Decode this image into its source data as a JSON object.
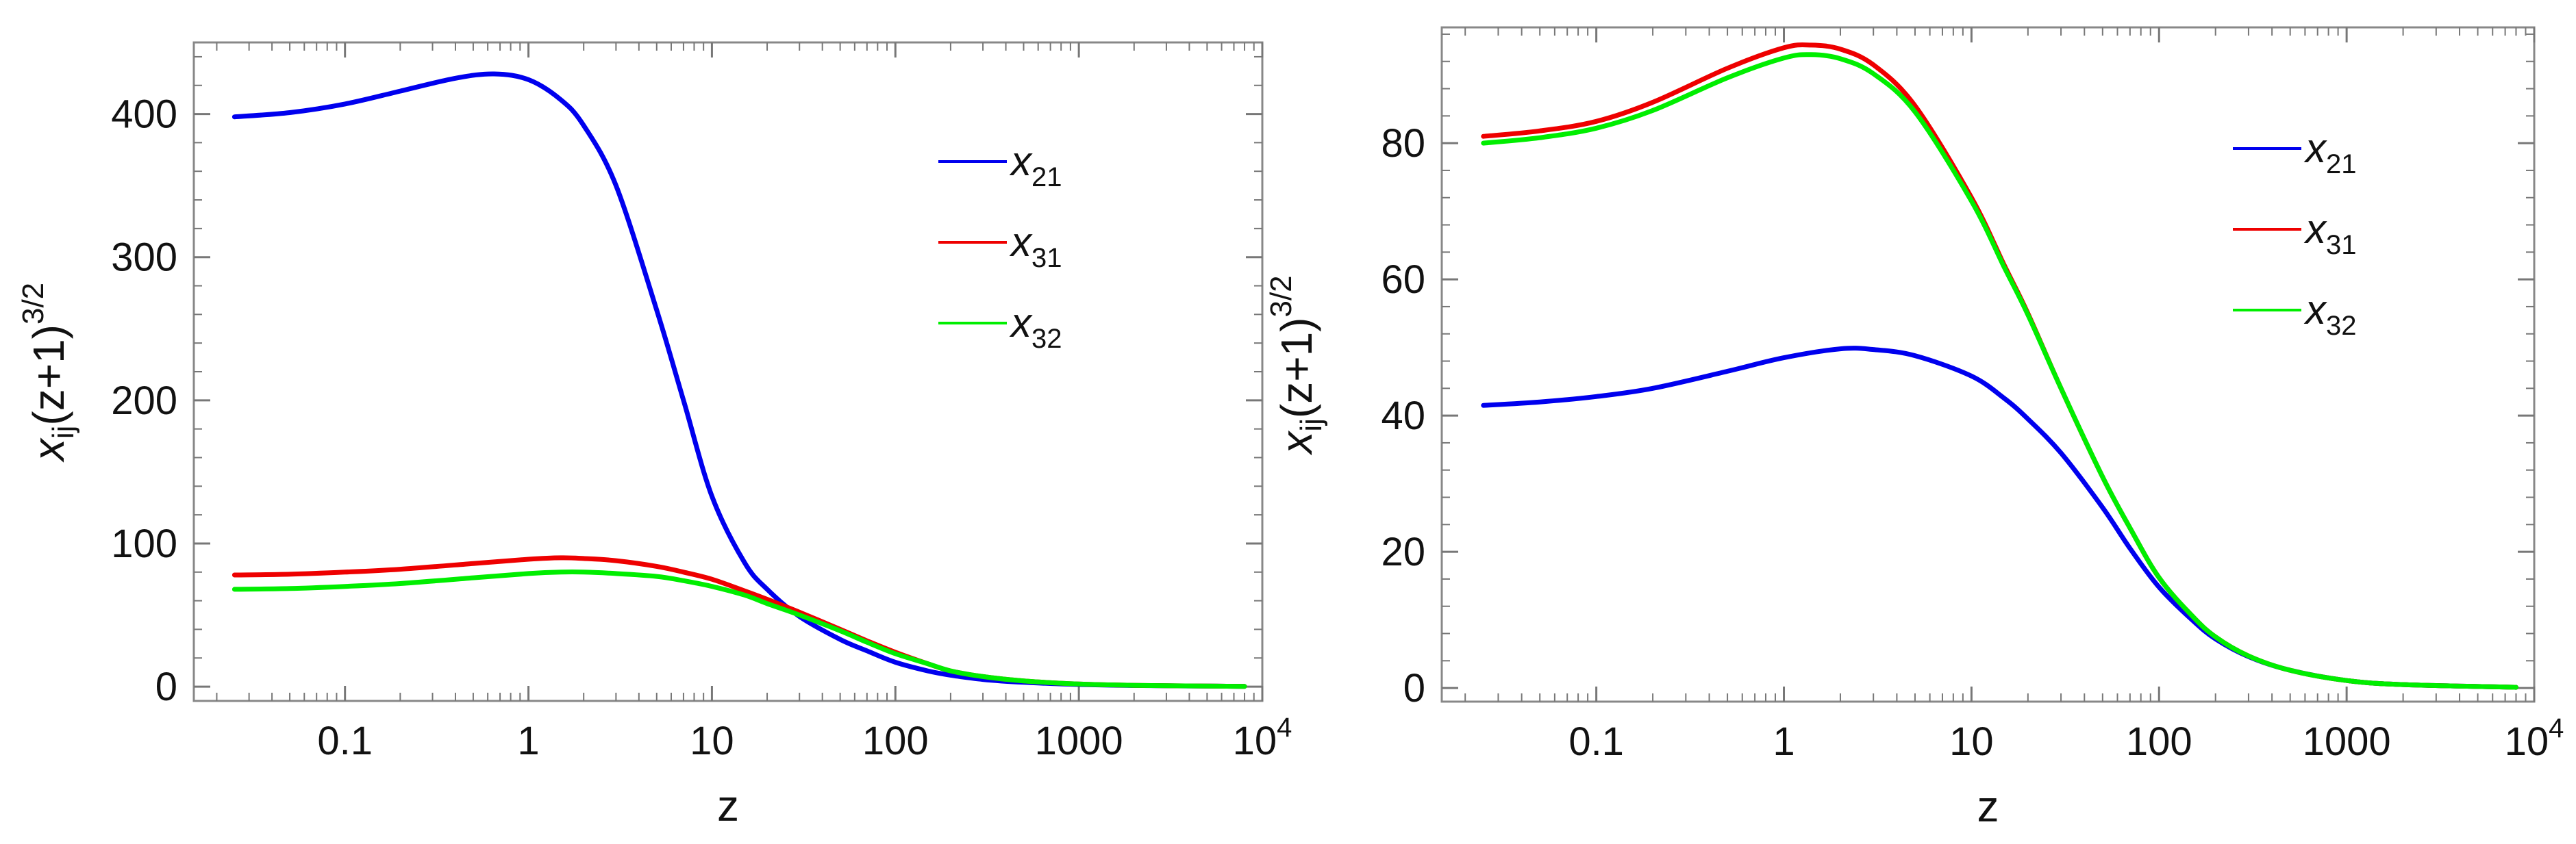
{
  "chart_data": [
    {
      "type": "line",
      "xscale": "log",
      "xlabel": "z",
      "ylabel": {
        "base": "x",
        "sub": "ij",
        "rest": "(z+1)",
        "sup": "3/2"
      },
      "xlim": [
        0.015,
        10000
      ],
      "ylim": [
        -10,
        450
      ],
      "xticks": [
        {
          "value": 0.1,
          "label": "0.1"
        },
        {
          "value": 1,
          "label": "1"
        },
        {
          "value": 10,
          "label": "10"
        },
        {
          "value": 100,
          "label": "100"
        },
        {
          "value": 1000,
          "label": "1000"
        },
        {
          "value": 10000,
          "label": "10",
          "sup": "4"
        }
      ],
      "yticks": [
        {
          "value": 0,
          "label": "0"
        },
        {
          "value": 100,
          "label": "100"
        },
        {
          "value": 200,
          "label": "200"
        },
        {
          "value": 300,
          "label": "300"
        },
        {
          "value": 400,
          "label": "400"
        }
      ],
      "legend_position": "upper-right",
      "series": [
        {
          "name": "x",
          "sub": "21",
          "color": "#0000ee",
          "x": [
            0.025,
            0.05,
            0.1,
            0.2,
            0.4,
            0.65,
            1,
            1.5,
            2,
            3,
            5,
            7,
            10,
            15,
            20,
            30,
            50,
            70,
            100,
            150,
            200,
            300,
            500,
            1000,
            2000,
            8000
          ],
          "y": [
            398,
            401,
            407,
            416,
            425,
            428,
            424,
            410,
            392,
            350,
            263,
            200,
            133,
            87,
            68,
            49,
            33,
            25,
            17,
            11,
            8,
            5,
            3,
            1.5,
            0.8,
            0.2
          ]
        },
        {
          "name": "x",
          "sub": "31",
          "color": "#ee0000",
          "x": [
            0.025,
            0.05,
            0.1,
            0.2,
            0.5,
            1,
            1.5,
            2,
            3,
            5,
            7,
            10,
            15,
            20,
            30,
            50,
            70,
            100,
            150,
            200,
            300,
            500,
            1000,
            2000,
            8000
          ],
          "y": [
            78,
            78.5,
            80,
            82,
            86,
            89,
            90,
            89.5,
            88,
            84,
            80,
            75,
            67,
            61,
            52,
            40,
            32,
            24,
            16,
            11,
            7,
            4,
            1.8,
            0.9,
            0.2
          ]
        },
        {
          "name": "x",
          "sub": "32",
          "color": "#00ee00",
          "x": [
            0.025,
            0.05,
            0.1,
            0.2,
            0.5,
            1,
            1.5,
            2,
            3,
            5,
            7,
            10,
            15,
            20,
            30,
            50,
            70,
            100,
            150,
            200,
            300,
            500,
            1000,
            2000,
            8000
          ],
          "y": [
            68,
            68.5,
            70,
            72,
            76,
            79,
            80,
            80,
            79,
            77,
            74,
            70,
            64,
            58,
            50,
            39,
            31,
            23,
            16,
            11,
            7,
            4,
            1.8,
            0.9,
            0.2
          ]
        }
      ]
    },
    {
      "type": "line",
      "xscale": "log",
      "xlabel": "z",
      "ylabel": {
        "base": "x",
        "sub": "ij",
        "rest": "(z+1)",
        "sup": "3/2"
      },
      "xlim": [
        0.015,
        10000
      ],
      "ylim": [
        -2,
        97
      ],
      "xticks": [
        {
          "value": 0.1,
          "label": "0.1"
        },
        {
          "value": 1,
          "label": "1"
        },
        {
          "value": 10,
          "label": "10"
        },
        {
          "value": 100,
          "label": "100"
        },
        {
          "value": 1000,
          "label": "1000"
        },
        {
          "value": 10000,
          "label": "10",
          "sup": "4"
        }
      ],
      "yticks": [
        {
          "value": 0,
          "label": "0"
        },
        {
          "value": 20,
          "label": "20"
        },
        {
          "value": 40,
          "label": "40"
        },
        {
          "value": 60,
          "label": "60"
        },
        {
          "value": 80,
          "label": "80"
        }
      ],
      "legend_position": "upper-right",
      "series": [
        {
          "name": "x",
          "sub": "21",
          "color": "#0000ee",
          "x": [
            0.025,
            0.05,
            0.1,
            0.2,
            0.5,
            1,
            2,
            3,
            5,
            10,
            15,
            20,
            30,
            50,
            70,
            100,
            150,
            200,
            300,
            500,
            1000,
            2000,
            8000
          ],
          "y": [
            41.5,
            42,
            42.8,
            44,
            46.5,
            48.5,
            49.8,
            49.7,
            48.8,
            45.8,
            42.5,
            39.5,
            34.5,
            26.5,
            20.5,
            14.8,
            10,
            7.2,
            4.6,
            2.6,
            1.1,
            0.5,
            0.1
          ]
        },
        {
          "name": "x",
          "sub": "31",
          "color": "#ee0000",
          "x": [
            0.025,
            0.05,
            0.1,
            0.2,
            0.5,
            1,
            1.4,
            2,
            3,
            5,
            10,
            15,
            20,
            30,
            50,
            70,
            100,
            150,
            200,
            300,
            500,
            1000,
            2000,
            8000
          ],
          "y": [
            81,
            81.8,
            83.2,
            86,
            91,
            94,
            94.4,
            93.8,
            91.5,
            85.5,
            72,
            62,
            55,
            44,
            31,
            23.5,
            16.2,
            10.6,
            7.5,
            4.7,
            2.6,
            1.1,
            0.5,
            0.1
          ]
        },
        {
          "name": "x",
          "sub": "32",
          "color": "#00ee00",
          "x": [
            0.025,
            0.05,
            0.1,
            0.2,
            0.5,
            1,
            1.4,
            2,
            3,
            5,
            10,
            15,
            20,
            30,
            50,
            70,
            100,
            150,
            200,
            300,
            500,
            1000,
            2000,
            8000
          ],
          "y": [
            80,
            80.8,
            82.2,
            84.8,
            89.6,
            92.5,
            93,
            92.4,
            90.2,
            84.6,
            71.5,
            61.7,
            54.8,
            44,
            31,
            23.5,
            16.2,
            10.6,
            7.5,
            4.7,
            2.6,
            1.1,
            0.5,
            0.1
          ]
        }
      ]
    }
  ]
}
